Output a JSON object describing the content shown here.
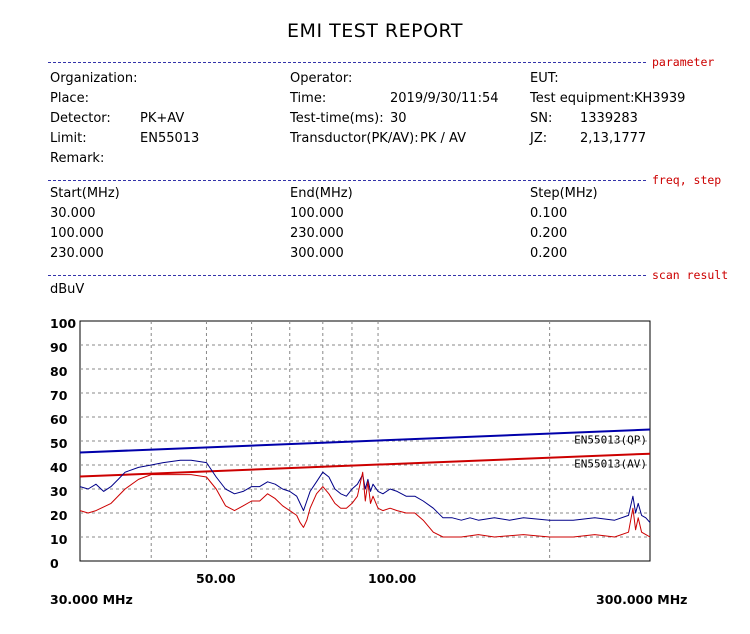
{
  "report": {
    "title": "EMI TEST REPORT"
  },
  "sections": {
    "parameter": "parameter",
    "freq_step": "freq, step",
    "scan_result": "scan result"
  },
  "parameter": {
    "organization_label": "Organization:",
    "organization": "",
    "place_label": "Place:",
    "place": "",
    "detector_label": "Detector:",
    "detector": "PK+AV",
    "limit_label": "Limit:",
    "limit": "EN55013",
    "remark_label": "Remark:",
    "remark": "",
    "operator_label": "Operator:",
    "operator": "",
    "time_label": "Time:",
    "time": "2019/9/30/11:54",
    "test_time_label": "Test-time(ms):",
    "test_time": "30",
    "transductor_label": "Transductor(PK/AV):",
    "transductor": "PK  /  AV",
    "eut_label": "EUT:",
    "eut": "",
    "test_equipment_label": "Test equipment:",
    "test_equipment": "KH3939",
    "sn_label": "SN:",
    "sn": "1339283",
    "jz_label": "JZ:",
    "jz": "2,13,1777"
  },
  "freq_table": {
    "headers": [
      "Start(MHz)",
      "End(MHz)",
      "Step(MHz)"
    ],
    "rows": [
      [
        "30.000",
        "100.000",
        "0.100"
      ],
      [
        "100.000",
        "230.000",
        "0.200"
      ],
      [
        "230.000",
        "300.000",
        "0.200"
      ]
    ]
  },
  "chart_data": {
    "type": "line",
    "ylabel": "dBuV",
    "ylim": [
      0,
      100
    ],
    "y_ticks": [
      "100",
      "90",
      "80",
      "70",
      "60",
      "50",
      "40",
      "30",
      "20",
      "10",
      "0"
    ],
    "x_scale": "log",
    "xlim": [
      30,
      300
    ],
    "x_tick_labels": [
      {
        "value": 50,
        "label": "50.00"
      },
      {
        "value": 100,
        "label": "100.00"
      }
    ],
    "x_start_label": "30.000 MHz",
    "x_end_label": "300.000 MHz",
    "grid": true,
    "series": [
      {
        "name": "EN55013(QP)",
        "color": "#0000aa",
        "style": "limit",
        "x": [
          30,
          300
        ],
        "y": [
          45.2,
          54.8
        ]
      },
      {
        "name": "EN55013(AV)",
        "color": "#cc0000",
        "style": "limit",
        "x": [
          30,
          300
        ],
        "y": [
          35.2,
          44.7
        ]
      },
      {
        "name": "",
        "color": "#000088",
        "style": "measured-pk",
        "x": [
          30,
          31,
          32,
          33,
          34,
          35,
          36,
          38,
          40,
          42,
          45,
          47,
          50,
          52,
          54,
          56,
          58,
          60,
          62,
          64,
          66,
          68,
          70,
          72,
          73,
          74,
          75,
          76,
          78,
          80,
          82,
          84,
          86,
          88,
          90,
          92,
          94,
          95,
          96,
          97,
          98,
          100,
          102,
          105,
          108,
          112,
          116,
          120,
          125,
          130,
          135,
          140,
          145,
          150,
          160,
          170,
          180,
          200,
          220,
          240,
          260,
          275,
          280,
          283,
          286,
          290,
          295,
          300
        ],
        "y": [
          31,
          30,
          32,
          29,
          31,
          34,
          37,
          39,
          40,
          41,
          42,
          42,
          41,
          35,
          30,
          28,
          29,
          31,
          31,
          33,
          32,
          30,
          29,
          27,
          24,
          21,
          25,
          29,
          33,
          37,
          35,
          30,
          28,
          27,
          30,
          32,
          36,
          30,
          34,
          29,
          32,
          29,
          28,
          30,
          29,
          27,
          27,
          25,
          22,
          18,
          18,
          17,
          18,
          17,
          18,
          17,
          18,
          17,
          17,
          18,
          17,
          19,
          27,
          20,
          24,
          19,
          18,
          16
        ]
      },
      {
        "name": "",
        "color": "#cc0000",
        "style": "measured-av",
        "x": [
          30,
          31,
          32,
          34,
          36,
          38,
          40,
          42,
          45,
          47,
          50,
          52,
          54,
          56,
          58,
          60,
          62,
          64,
          66,
          68,
          70,
          72,
          73,
          74,
          75,
          76,
          78,
          80,
          82,
          84,
          86,
          88,
          90,
          92,
          94,
          95,
          96,
          97,
          98,
          100,
          102,
          105,
          108,
          112,
          116,
          120,
          125,
          130,
          135,
          140,
          150,
          160,
          180,
          200,
          220,
          240,
          260,
          275,
          280,
          283,
          286,
          290,
          295,
          300
        ],
        "y": [
          21,
          20,
          21,
          24,
          30,
          34,
          36,
          36,
          36,
          36,
          35,
          30,
          23,
          21,
          23,
          25,
          25,
          28,
          26,
          23,
          21,
          19,
          16,
          14,
          17,
          22,
          28,
          31,
          28,
          24,
          22,
          22,
          24,
          27,
          37,
          25,
          33,
          24,
          27,
          22,
          21,
          22,
          21,
          20,
          20,
          17,
          12,
          10,
          10,
          10,
          11,
          10,
          11,
          10,
          10,
          11,
          10,
          12,
          22,
          13,
          18,
          12,
          11,
          10
        ]
      }
    ]
  }
}
